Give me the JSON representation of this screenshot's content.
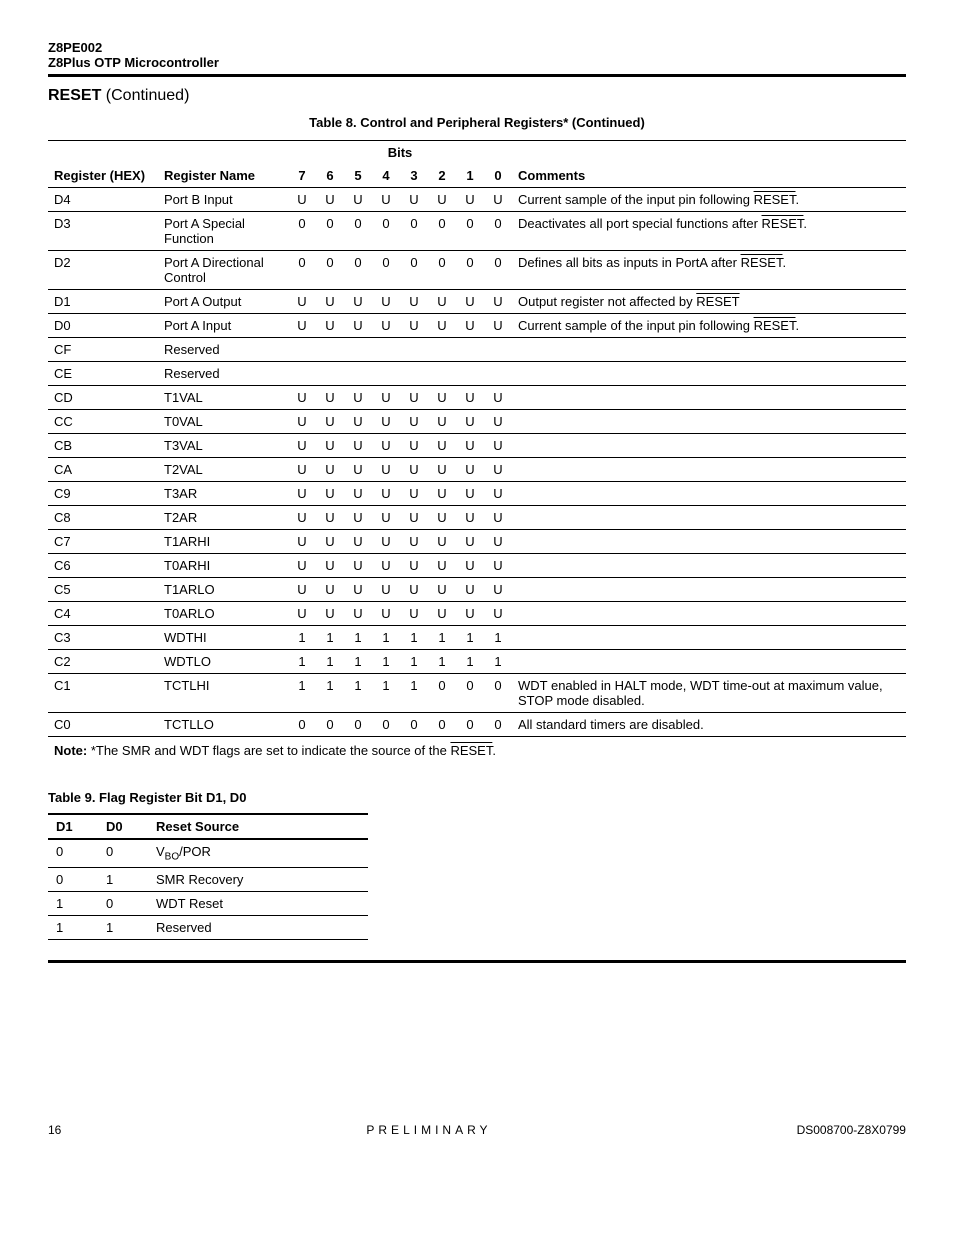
{
  "header": {
    "product_code": "Z8PE002",
    "product_name": "Z8Plus OTP Microcontroller"
  },
  "section": {
    "title": "RESET",
    "continued": "(Continued)"
  },
  "table8": {
    "caption": "Table 8.  Control and Peripheral Registers*  (Continued)",
    "bits_label": "Bits",
    "headers": {
      "register_hex": "Register (HEX)",
      "register_name": "Register Name",
      "b7": "7",
      "b6": "6",
      "b5": "5",
      "b4": "4",
      "b3": "3",
      "b2": "2",
      "b1": "1",
      "b0": "0",
      "comments": "Comments"
    },
    "rows": [
      {
        "hex": "D4",
        "name": "Port B Input",
        "bits": [
          "U",
          "U",
          "U",
          "U",
          "U",
          "U",
          "U",
          "U"
        ],
        "comment_pre": "Current sample of the input pin following ",
        "comment_over": "RESET",
        "comment_post": "."
      },
      {
        "hex": "D3",
        "name": "Port A Special Function",
        "bits": [
          "0",
          "0",
          "0",
          "0",
          "0",
          "0",
          "0",
          "0"
        ],
        "comment_pre": "Deactivates all port special functions after ",
        "comment_over": "RESET",
        "comment_post": "."
      },
      {
        "hex": "D2",
        "name": "Port A Directional Control",
        "bits": [
          "0",
          "0",
          "0",
          "0",
          "0",
          "0",
          "0",
          "0"
        ],
        "comment_pre": "Defines all bits as inputs in PortA after ",
        "comment_over": "RESET",
        "comment_post": "."
      },
      {
        "hex": "D1",
        "name": "Port A Output",
        "bits": [
          "U",
          "U",
          "U",
          "U",
          "U",
          "U",
          "U",
          "U"
        ],
        "comment_pre": "Output register not affected by ",
        "comment_over": "RESET",
        "comment_post": ""
      },
      {
        "hex": "D0",
        "name": "Port A Input",
        "bits": [
          "U",
          "U",
          "U",
          "U",
          "U",
          "U",
          "U",
          "U"
        ],
        "comment_pre": "Current sample of the input pin following ",
        "comment_over": "RESET",
        "comment_post": "."
      },
      {
        "hex": "CF",
        "name": "Reserved",
        "bits": [
          "",
          "",
          "",
          "",
          "",
          "",
          "",
          ""
        ],
        "comment_pre": "",
        "comment_over": "",
        "comment_post": ""
      },
      {
        "hex": "CE",
        "name": "Reserved",
        "bits": [
          "",
          "",
          "",
          "",
          "",
          "",
          "",
          ""
        ],
        "comment_pre": "",
        "comment_over": "",
        "comment_post": ""
      },
      {
        "hex": "CD",
        "name": "T1VAL",
        "bits": [
          "U",
          "U",
          "U",
          "U",
          "U",
          "U",
          "U",
          "U"
        ],
        "comment_pre": "",
        "comment_over": "",
        "comment_post": ""
      },
      {
        "hex": "CC",
        "name": "T0VAL",
        "bits": [
          "U",
          "U",
          "U",
          "U",
          "U",
          "U",
          "U",
          "U"
        ],
        "comment_pre": "",
        "comment_over": "",
        "comment_post": ""
      },
      {
        "hex": "CB",
        "name": "T3VAL",
        "bits": [
          "U",
          "U",
          "U",
          "U",
          "U",
          "U",
          "U",
          "U"
        ],
        "comment_pre": "",
        "comment_over": "",
        "comment_post": ""
      },
      {
        "hex": "CA",
        "name": "T2VAL",
        "bits": [
          "U",
          "U",
          "U",
          "U",
          "U",
          "U",
          "U",
          "U"
        ],
        "comment_pre": "",
        "comment_over": "",
        "comment_post": ""
      },
      {
        "hex": "C9",
        "name": "T3AR",
        "bits": [
          "U",
          "U",
          "U",
          "U",
          "U",
          "U",
          "U",
          "U"
        ],
        "comment_pre": "",
        "comment_over": "",
        "comment_post": ""
      },
      {
        "hex": "C8",
        "name": "T2AR",
        "bits": [
          "U",
          "U",
          "U",
          "U",
          "U",
          "U",
          "U",
          "U"
        ],
        "comment_pre": "",
        "comment_over": "",
        "comment_post": ""
      },
      {
        "hex": "C7",
        "name": "T1ARHI",
        "bits": [
          "U",
          "U",
          "U",
          "U",
          "U",
          "U",
          "U",
          "U"
        ],
        "comment_pre": "",
        "comment_over": "",
        "comment_post": ""
      },
      {
        "hex": "C6",
        "name": "T0ARHI",
        "bits": [
          "U",
          "U",
          "U",
          "U",
          "U",
          "U",
          "U",
          "U"
        ],
        "comment_pre": "",
        "comment_over": "",
        "comment_post": ""
      },
      {
        "hex": "C5",
        "name": "T1ARLO",
        "bits": [
          "U",
          "U",
          "U",
          "U",
          "U",
          "U",
          "U",
          "U"
        ],
        "comment_pre": "",
        "comment_over": "",
        "comment_post": ""
      },
      {
        "hex": "C4",
        "name": "T0ARLO",
        "bits": [
          "U",
          "U",
          "U",
          "U",
          "U",
          "U",
          "U",
          "U"
        ],
        "comment_pre": "",
        "comment_over": "",
        "comment_post": ""
      },
      {
        "hex": "C3",
        "name": "WDTHI",
        "bits": [
          "1",
          "1",
          "1",
          "1",
          "1",
          "1",
          "1",
          "1"
        ],
        "comment_pre": "",
        "comment_over": "",
        "comment_post": ""
      },
      {
        "hex": "C2",
        "name": "WDTLO",
        "bits": [
          "1",
          "1",
          "1",
          "1",
          "1",
          "1",
          "1",
          "1"
        ],
        "comment_pre": "",
        "comment_over": "",
        "comment_post": ""
      },
      {
        "hex": "C1",
        "name": "TCTLHI",
        "bits": [
          "1",
          "1",
          "1",
          "1",
          "1",
          "0",
          "0",
          "0"
        ],
        "comment_pre": "WDT enabled in HALT mode, WDT time-out at maximum value, STOP mode disabled.",
        "comment_over": "",
        "comment_post": ""
      },
      {
        "hex": "C0",
        "name": "TCTLLO",
        "bits": [
          "0",
          "0",
          "0",
          "0",
          "0",
          "0",
          "0",
          "0"
        ],
        "comment_pre": "All standard timers are disabled.",
        "comment_over": "",
        "comment_post": ""
      }
    ],
    "note_label": "Note:",
    "note_text_pre": " *The SMR and WDT flags are set to indicate the source of the ",
    "note_over": "RESET",
    "note_text_post": "."
  },
  "table9": {
    "caption": "Table 9.  Flag Register Bit D1, D0",
    "headers": {
      "d1": "D1",
      "d0": "D0",
      "source": "Reset Source"
    },
    "rows": [
      {
        "d1": "0",
        "d0": "0",
        "source_html": "V<sub>BO</sub>/POR"
      },
      {
        "d1": "0",
        "d0": "1",
        "source_html": "SMR Recovery"
      },
      {
        "d1": "1",
        "d0": "0",
        "source_html": "WDT Reset"
      },
      {
        "d1": "1",
        "d0": "1",
        "source_html": "Reserved"
      }
    ]
  },
  "footer": {
    "page": "16",
    "center": "PRELIMINARY",
    "right": "DS008700-Z8X0799"
  }
}
